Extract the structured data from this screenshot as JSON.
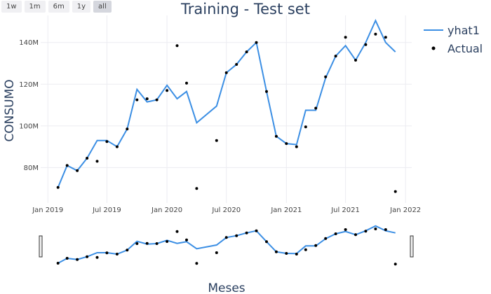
{
  "range_selector": [
    {
      "label": "1w",
      "active": false
    },
    {
      "label": "1m",
      "active": false
    },
    {
      "label": "6m",
      "active": false
    },
    {
      "label": "1y",
      "active": false
    },
    {
      "label": "all",
      "active": true
    }
  ],
  "colors": {
    "line": "#3c8fe4",
    "point": "#000000",
    "grid": "#ececf1",
    "text": "#2a3f5f"
  },
  "chart_data": {
    "type": "line",
    "title": "Training - Test set",
    "xlabel": "Meses",
    "ylabel": "CONSUMO",
    "x_ticks": [
      "Jan 2019",
      "Jul 2019",
      "Jan 2020",
      "Jul 2020",
      "Jan 2021",
      "Jul 2021",
      "Jan 2022"
    ],
    "y_ticks": [
      "80M",
      "100M",
      "120M",
      "140M"
    ],
    "y_tick_values": [
      80,
      100,
      120,
      140
    ],
    "ylim": [
      63,
      153
    ],
    "xlim": [
      "2018-12-10",
      "2022-01-20"
    ],
    "legend": "right",
    "x": [
      "2019-02-01",
      "2019-03-01",
      "2019-04-01",
      "2019-05-01",
      "2019-06-01",
      "2019-07-01",
      "2019-08-01",
      "2019-09-01",
      "2019-10-01",
      "2019-11-01",
      "2019-12-01",
      "2020-01-01",
      "2020-02-01",
      "2020-03-01",
      "2020-04-01",
      "2020-06-01",
      "2020-07-01",
      "2020-08-01",
      "2020-09-01",
      "2020-10-01",
      "2020-11-01",
      "2020-12-01",
      "2021-01-01",
      "2021-02-01",
      "2021-03-01",
      "2021-04-01",
      "2021-05-01",
      "2021-06-01",
      "2021-07-01",
      "2021-08-01",
      "2021-09-01",
      "2021-10-01",
      "2021-11-01",
      "2021-12-01"
    ],
    "series": [
      {
        "name": "yhat1",
        "mode": "lines",
        "values": [
          70.5,
          81,
          78.5,
          84.5,
          93,
          93,
          90,
          98.5,
          117.5,
          111.5,
          112.5,
          119.5,
          113,
          116.5,
          101.5,
          109.5,
          125.5,
          129.5,
          135.5,
          140,
          116.5,
          95,
          91.5,
          91,
          107.5,
          107.5,
          123,
          133.5,
          138.5,
          131.5,
          140,
          150.5,
          140,
          135.5
        ]
      },
      {
        "name": "Actual",
        "mode": "markers",
        "values": [
          70.5,
          81,
          78.5,
          84.5,
          83,
          92.5,
          90,
          98.5,
          112.5,
          113,
          112.5,
          117,
          138.5,
          120.5,
          70,
          93,
          125.5,
          129.5,
          135.5,
          140,
          116.5,
          95,
          91.5,
          90,
          99.5,
          108.5,
          123.5,
          133.5,
          142.5,
          131.5,
          139,
          144,
          142.5,
          68.5
        ]
      }
    ]
  }
}
